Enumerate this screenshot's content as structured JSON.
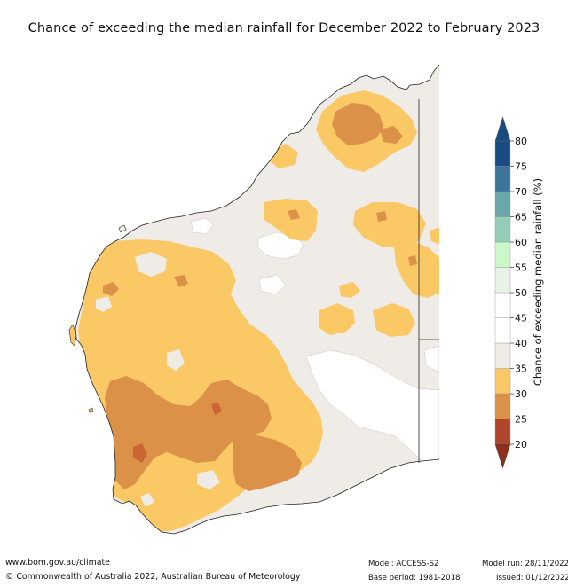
{
  "title": "Chance of exceeding the median rainfall for December 2022 to February 2023",
  "legend": {
    "label": "Chance of exceeding median rainfall (%)",
    "ticks": [
      "20",
      "25",
      "30",
      "35",
      "40",
      "45",
      "50",
      "55",
      "60",
      "65",
      "70",
      "75",
      "80"
    ],
    "colors": [
      "#b0462a",
      "#cc6535",
      "#dc9148",
      "#fbc866",
      "#efebe6",
      "#ffffff",
      "#ffffff",
      "#e8f2e6",
      "#ccf7c8",
      "#93cdb6",
      "#6aa7a8",
      "#3b7597",
      "#184b82"
    ]
  },
  "footer": {
    "website": "www.bom.gov.au/climate",
    "copyright": "© Commonwealth of Australia 2022, Australian Bureau of Meteorology",
    "model": "Model: ACCESS-S2",
    "base_period": "Base period: 1981-2018",
    "model_run": "Model run: 28/11/2022",
    "issued": "Issued: 01/12/2022"
  }
}
